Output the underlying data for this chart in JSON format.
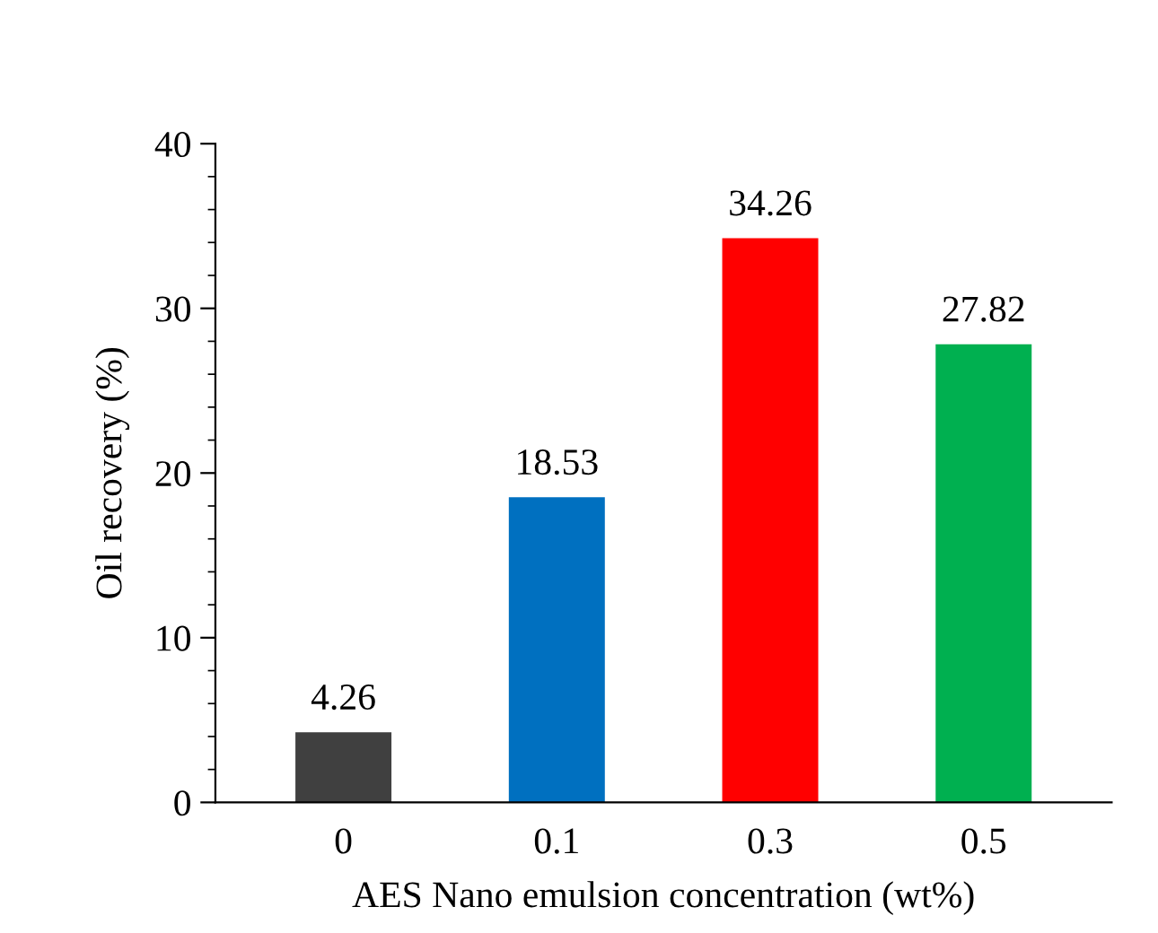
{
  "chart_data": {
    "type": "bar",
    "categories": [
      "0",
      "0.1",
      "0.3",
      "0.5"
    ],
    "values": [
      4.26,
      18.53,
      34.26,
      27.82
    ],
    "colors": [
      "#404040",
      "#0070c0",
      "#ff0000",
      "#00b050"
    ],
    "xlabel": "AES Nano emulsion concentration (wt%)",
    "ylabel": "Oil recovery (%)",
    "ylim": [
      0,
      40
    ],
    "yticks": [
      0,
      10,
      20,
      30,
      40
    ],
    "data_labels": true,
    "grid": false
  }
}
